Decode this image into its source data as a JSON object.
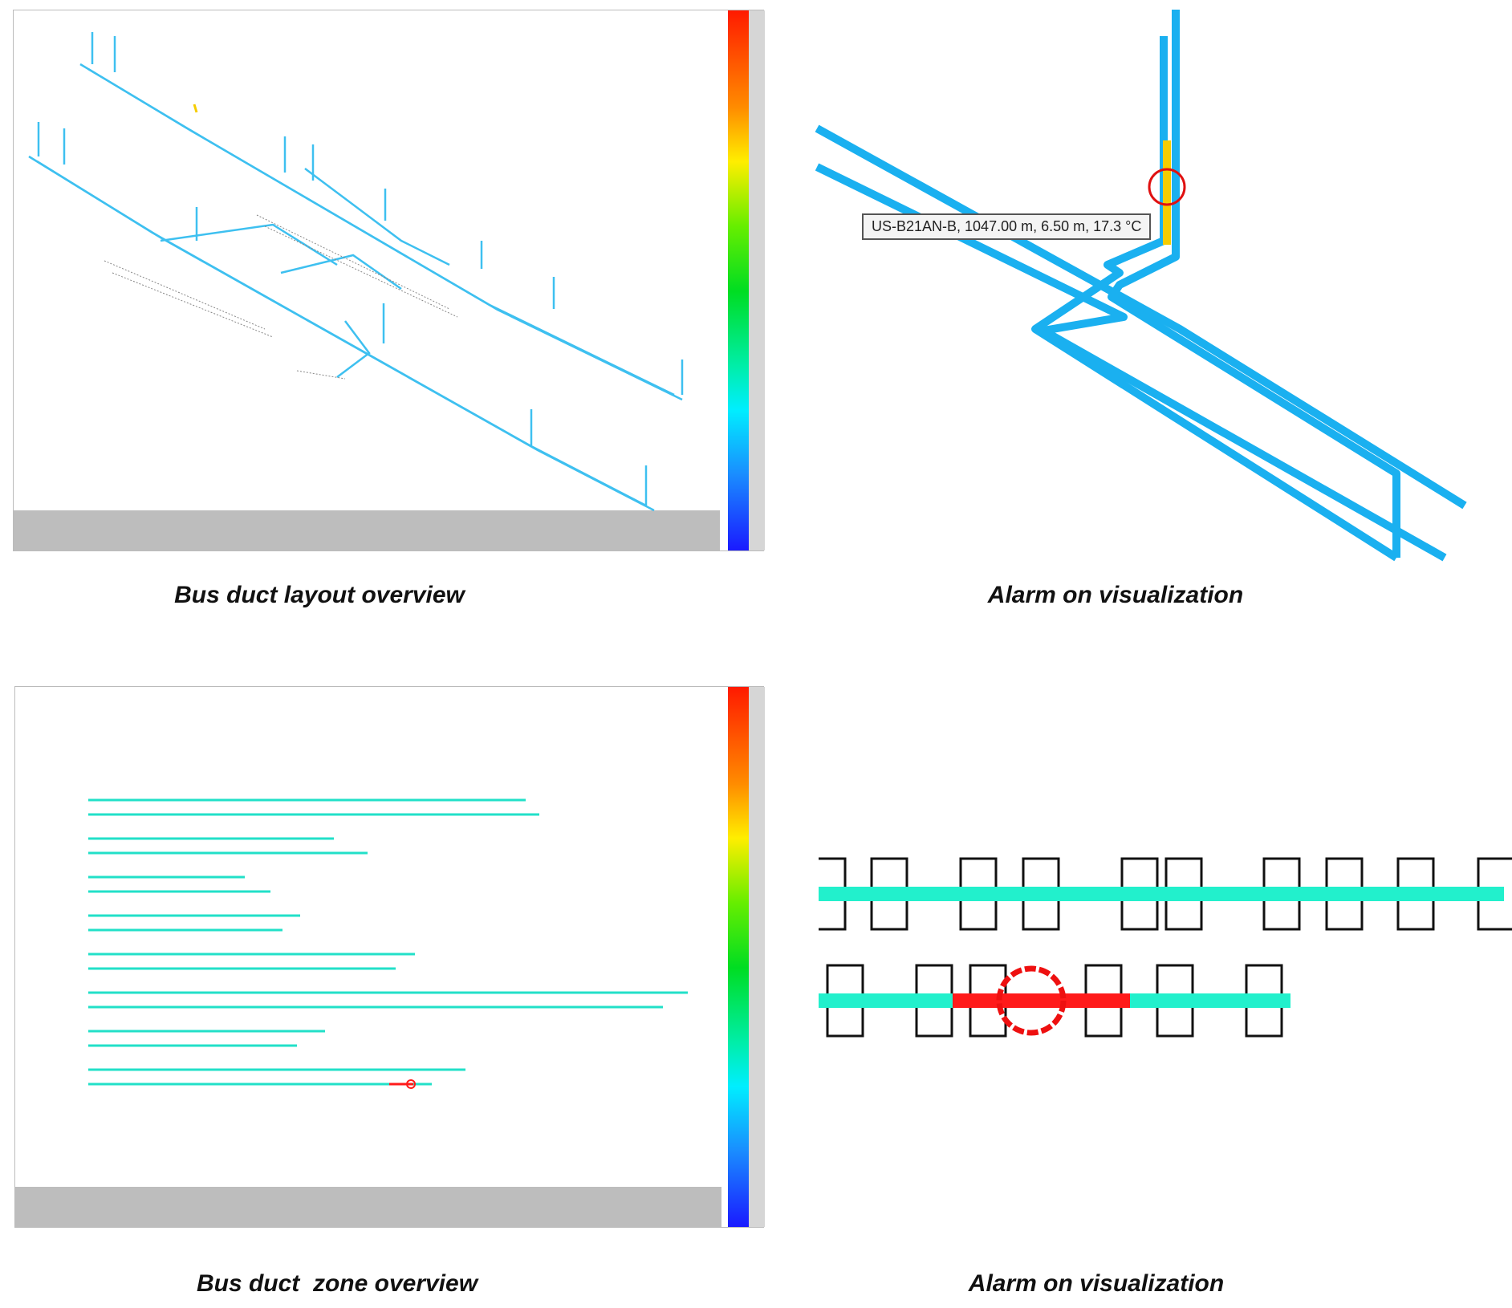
{
  "panels": [
    {
      "caption": "Bus duct layout overview"
    },
    {
      "caption": "Alarm on visualization",
      "tooltip": "US-B21AN-B, 1047.00 m, 6.50 m, 17.3 °C"
    },
    {
      "caption": "Bus duct  zone overview"
    },
    {
      "caption": "Alarm on visualization"
    }
  ],
  "colors": {
    "duct": "#1ab0f0",
    "duct_light": "#55ccf5",
    "normal_zone": "#22f0cc",
    "alarm": "#ff1a1a",
    "warning": "#f5cc00"
  }
}
